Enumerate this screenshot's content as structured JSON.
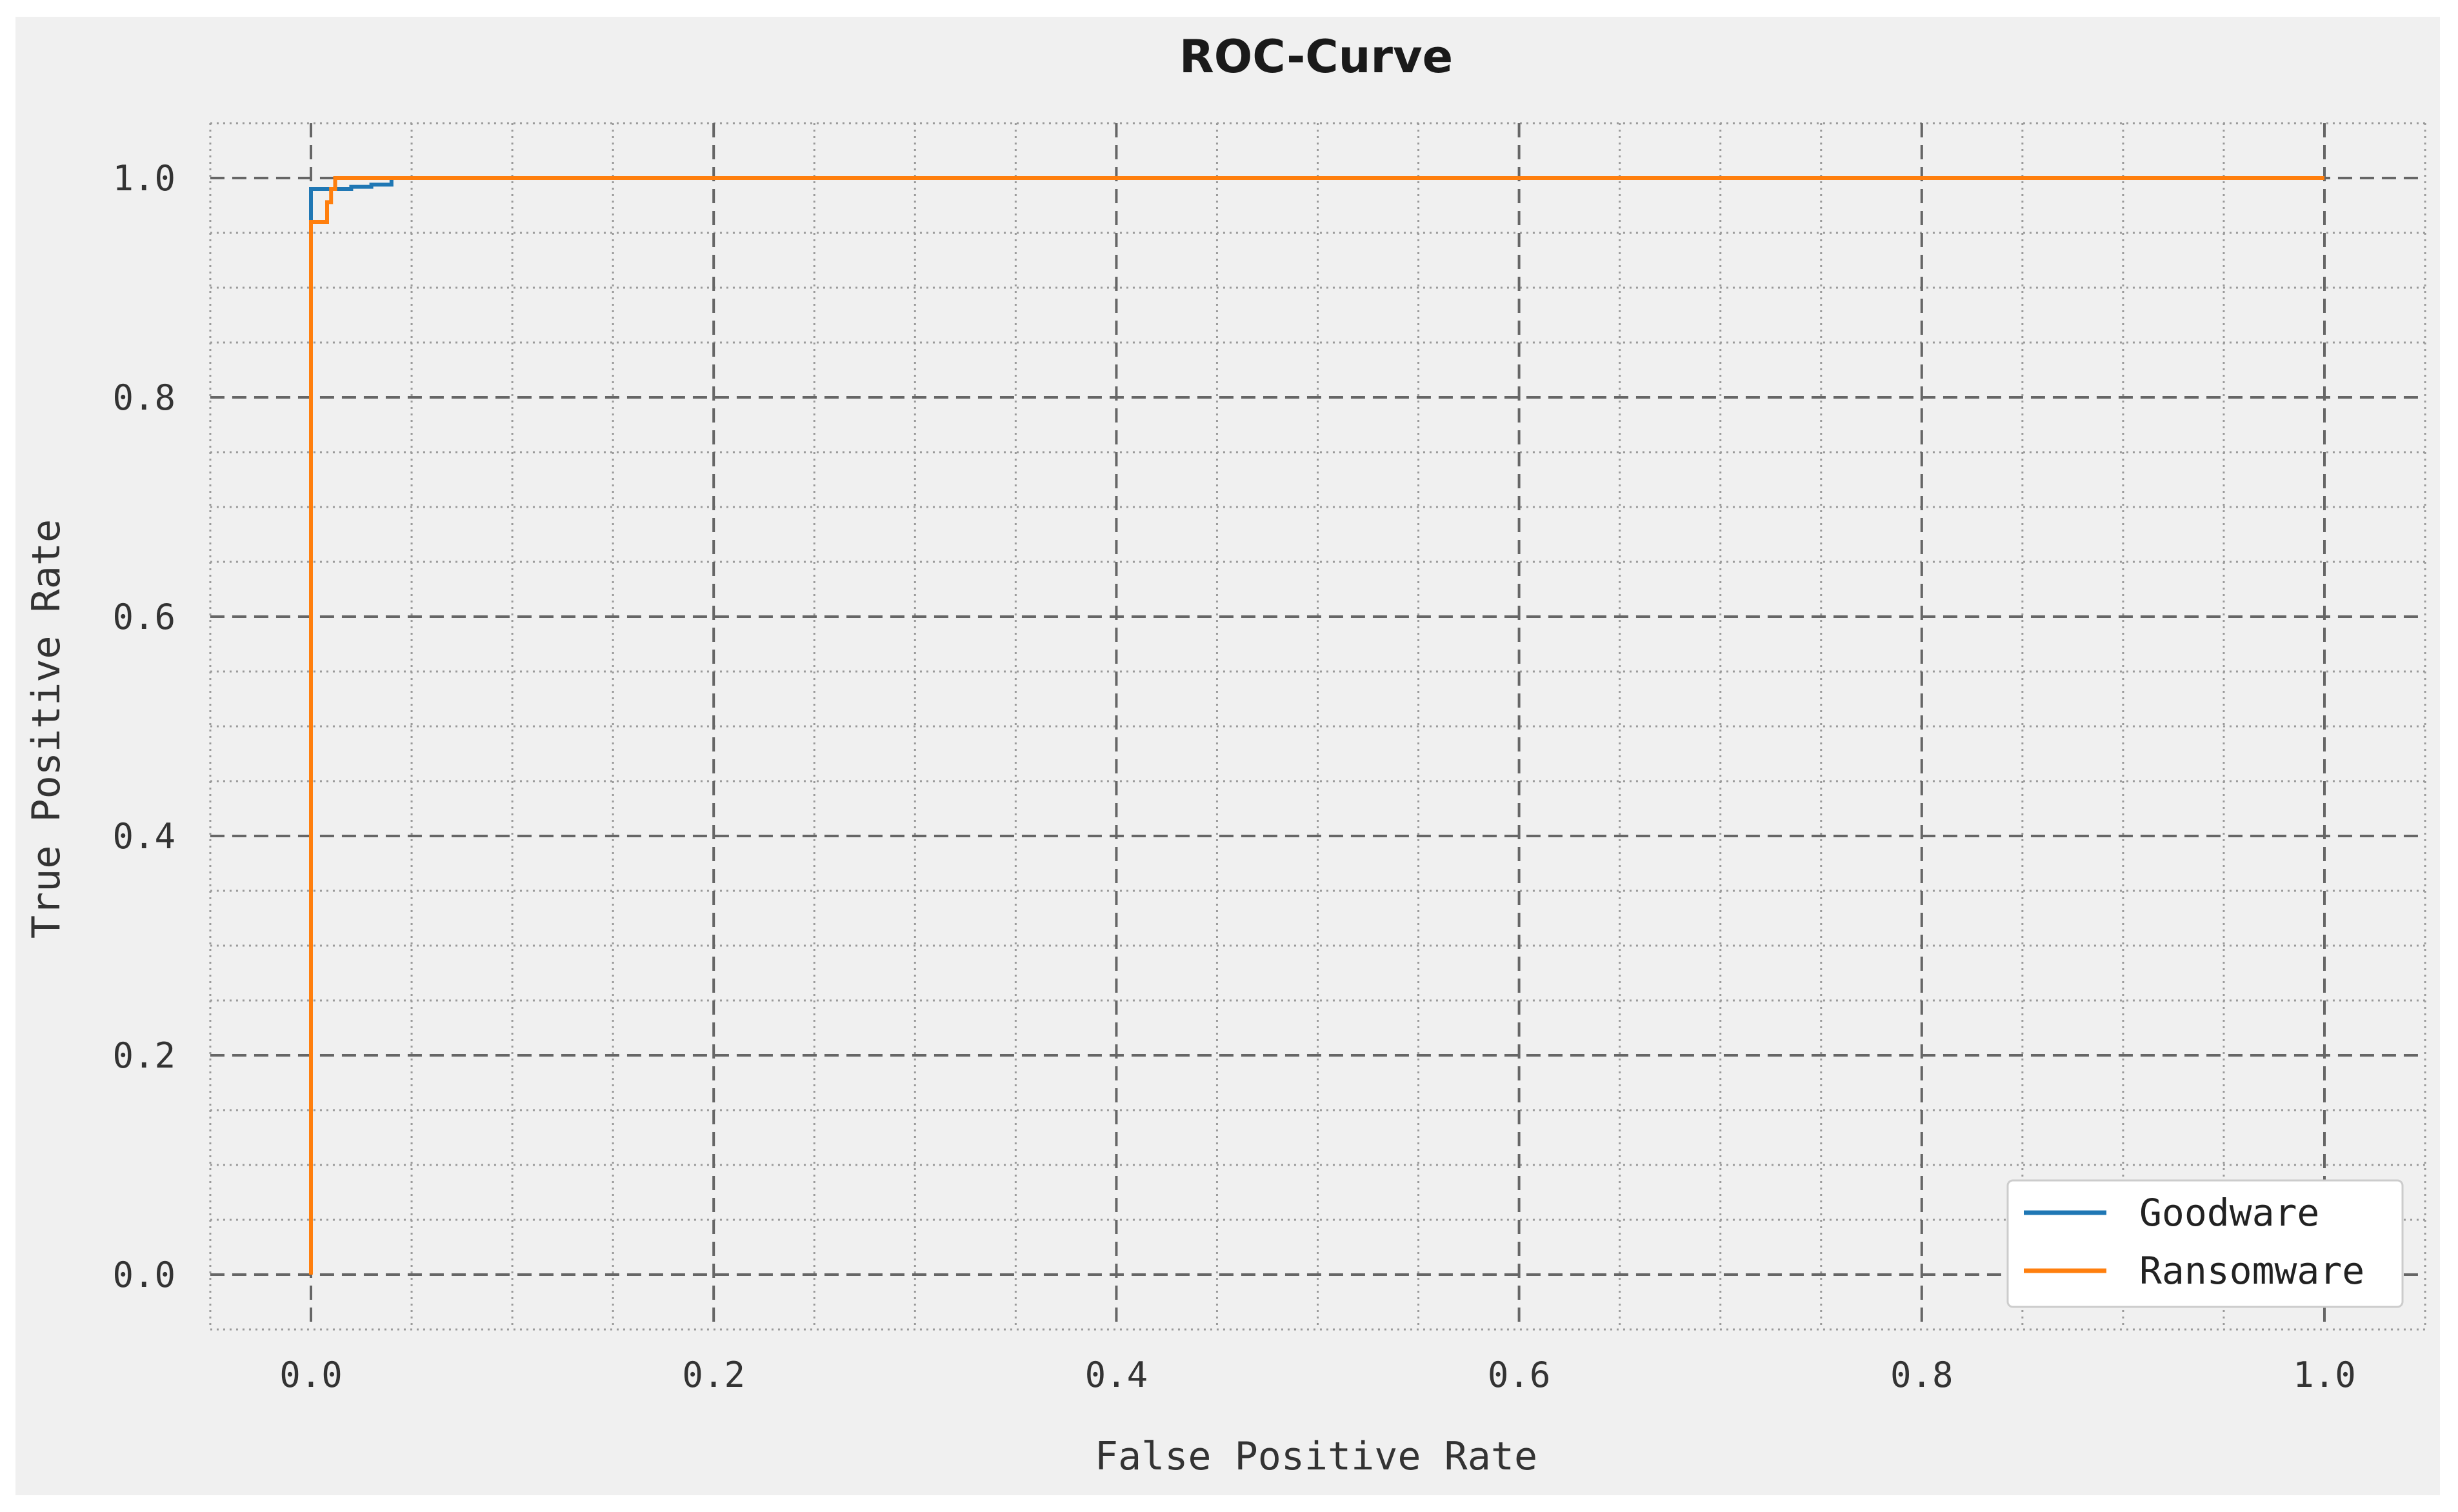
{
  "chart_data": {
    "type": "line",
    "title": "ROC-Curve",
    "xlabel": "False Positive Rate",
    "ylabel": "True Positive Rate",
    "xlim": [
      -0.05,
      1.05
    ],
    "ylim": [
      -0.05,
      1.05
    ],
    "xticks": [
      "0.0",
      "0.2",
      "0.4",
      "0.6",
      "0.8",
      "1.0"
    ],
    "yticks": [
      "0.0",
      "0.2",
      "0.4",
      "0.6",
      "0.8",
      "1.0"
    ],
    "grid": true,
    "legend_position": "bottom-right",
    "series": [
      {
        "name": "Goodware",
        "color": "#1f77b4",
        "x": [
          0.0,
          0.0,
          0.0,
          0.0,
          0.01,
          0.01,
          0.02,
          0.02,
          0.03,
          0.03,
          0.04,
          0.04,
          1.0
        ],
        "y": [
          0.0,
          0.96,
          0.96,
          0.99,
          0.99,
          0.99,
          0.99,
          0.992,
          0.992,
          0.994,
          0.994,
          1.0,
          1.0
        ]
      },
      {
        "name": "Ransomware",
        "color": "#ff7f0e",
        "x": [
          0.0,
          0.0,
          0.008,
          0.008,
          0.01,
          0.01,
          0.012,
          0.012,
          1.0
        ],
        "y": [
          0.0,
          0.96,
          0.96,
          0.978,
          0.978,
          0.99,
          0.99,
          1.0,
          1.0
        ]
      }
    ]
  }
}
